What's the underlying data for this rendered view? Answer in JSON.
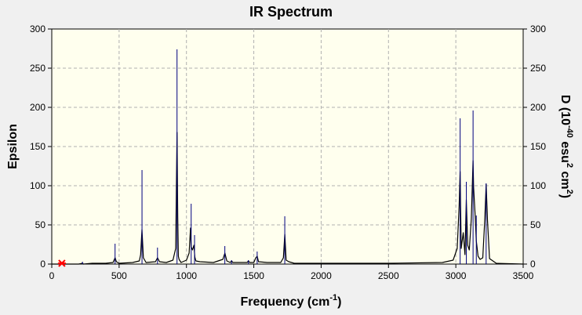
{
  "chart_data": {
    "type": "line",
    "title": "IR Spectrum",
    "xlabel": "Frequency (cm",
    "xlabel_sup": "-1",
    "xlabel_end": ")",
    "ylabel_left": "Epsilon",
    "ylabel_right_parts": [
      "D (10",
      "-40",
      " esu",
      "2",
      " cm",
      "2",
      ")"
    ],
    "xlim": [
      0,
      3500
    ],
    "ylim": [
      0,
      300
    ],
    "xticks": [
      0,
      500,
      1000,
      1500,
      2000,
      2500,
      3000,
      3500
    ],
    "yticks": [
      0,
      50,
      100,
      150,
      200,
      250,
      300
    ],
    "grid": true,
    "colors": {
      "spectrum": "#000000",
      "sticks": "#00007f",
      "marker": "#ff0000",
      "plot_bg": "#ffffee"
    },
    "marker_point": {
      "x": 75,
      "y": 1
    },
    "series": [
      {
        "kind": "spectrum",
        "x": [
          0,
          100,
          200,
          228,
          235,
          300,
          400,
          455,
          470,
          480,
          500,
          600,
          650,
          660,
          670,
          680,
          700,
          770,
          785,
          800,
          850,
          900,
          920,
          925,
          930,
          935,
          940,
          945,
          960,
          1000,
          1020,
          1030,
          1035,
          1045,
          1055,
          1062,
          1070,
          1100,
          1200,
          1270,
          1285,
          1300,
          1325,
          1335,
          1345,
          1400,
          1450,
          1460,
          1470,
          1500,
          1515,
          1525,
          1535,
          1600,
          1700,
          1720,
          1730,
          1740,
          1760,
          1800,
          2000,
          2500,
          2900,
          2980,
          3010,
          3025,
          3032,
          3040,
          3055,
          3068,
          3078,
          3088,
          3100,
          3115,
          3128,
          3132,
          3145,
          3152,
          3165,
          3180,
          3200,
          3215,
          3225,
          3235,
          3250,
          3300,
          3500
        ],
        "y": [
          0,
          0,
          0,
          1,
          0,
          1,
          1,
          2,
          8,
          3,
          1,
          2,
          4,
          12,
          44,
          8,
          2,
          3,
          8,
          3,
          2,
          5,
          20,
          90,
          168,
          60,
          10,
          6,
          2,
          5,
          14,
          46,
          22,
          18,
          24,
          9,
          4,
          3,
          2,
          6,
          14,
          4,
          2,
          4,
          2,
          2,
          2,
          4,
          2,
          2,
          8,
          10,
          3,
          2,
          2,
          8,
          38,
          5,
          3,
          1,
          1,
          1,
          2,
          5,
          20,
          75,
          118,
          20,
          40,
          12,
          82,
          24,
          18,
          58,
          132,
          98,
          58,
          30,
          10,
          6,
          8,
          58,
          102,
          56,
          7,
          1,
          0
        ]
      },
      {
        "kind": "sticks",
        "x": [
          228,
          470,
          670,
          785,
          930,
          1035,
          1060,
          1285,
          1335,
          1460,
          1525,
          1730,
          3032,
          3078,
          3128,
          3152,
          3225
        ],
        "y": [
          3,
          26,
          120,
          21,
          274,
          77,
          37,
          23,
          5,
          5,
          16,
          61,
          186,
          105,
          196,
          62,
          103
        ]
      }
    ]
  }
}
